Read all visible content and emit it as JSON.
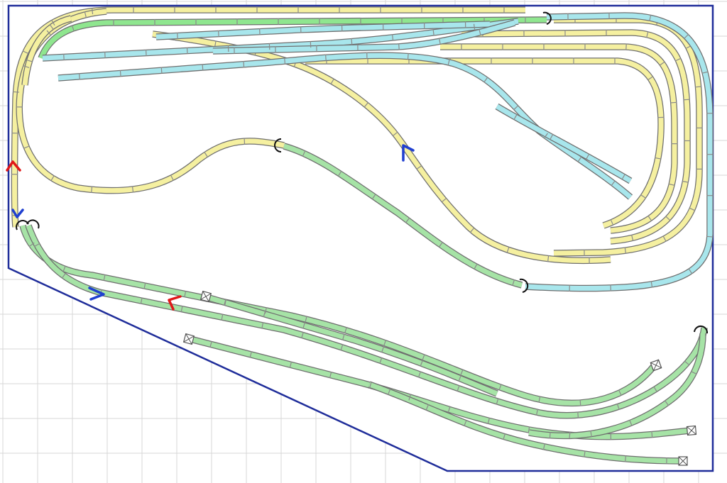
{
  "plan": {
    "colors": {
      "loop_track": "#f5f0a0",
      "siding_track": "#a6e3a6",
      "bright_track": "#8fe68f",
      "yard_track": "#a8e6ec",
      "baseboard_outline": "#1f2d9a",
      "grid": "#d7d7d7",
      "arrow_red": "#e01818",
      "arrow_blue": "#1f3fd0"
    },
    "track_groups": [
      {
        "name": "yellow-track",
        "color": "loop_track"
      },
      {
        "name": "green-track",
        "color": "siding_track"
      },
      {
        "name": "cyan-track",
        "color": "yard_track"
      }
    ],
    "direction_arrows": [
      {
        "name": "red-arrow-left",
        "color": "arrow_red"
      },
      {
        "name": "blue-arrow-down",
        "color": "arrow_blue"
      },
      {
        "name": "blue-arrow-right",
        "color": "arrow_blue"
      },
      {
        "name": "red-arrow-lower",
        "color": "arrow_red"
      },
      {
        "name": "blue-arrow-center",
        "color": "arrow_blue"
      }
    ]
  }
}
